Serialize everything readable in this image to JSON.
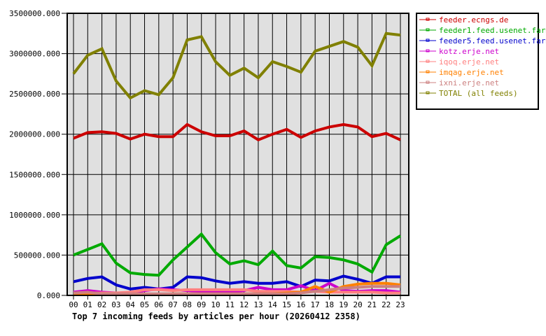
{
  "chart_data": {
    "type": "line",
    "title": "Top 7 incoming feeds by articles per hour (20260412 2358)",
    "xlabel": "",
    "ylabel": "",
    "ylim": [
      0,
      3500000
    ],
    "grid": true,
    "legend_position": "right-top",
    "y_ticks": [
      "0.000",
      "500000.000",
      "1000000.000",
      "1500000.000",
      "2000000.000",
      "2500000.000",
      "3000000.000",
      "3500000.000"
    ],
    "x": [
      "00",
      "01",
      "02",
      "03",
      "04",
      "05",
      "06",
      "07",
      "08",
      "09",
      "10",
      "11",
      "12",
      "13",
      "14",
      "15",
      "16",
      "17",
      "18",
      "19",
      "20",
      "21",
      "22",
      "23"
    ],
    "series": [
      {
        "name": "feeder.ecngs.de",
        "color": "#cc0000",
        "values": [
          1950000,
          2020000,
          2030000,
          2010000,
          1940000,
          2000000,
          1970000,
          1970000,
          2120000,
          2030000,
          1980000,
          1980000,
          2040000,
          1930000,
          2000000,
          2060000,
          1960000,
          2040000,
          2090000,
          2120000,
          2090000,
          1970000,
          2010000,
          1930000
        ]
      },
      {
        "name": "feeder1.feed.usenet.farm",
        "color": "#00aa00",
        "values": [
          500000,
          570000,
          640000,
          400000,
          280000,
          260000,
          250000,
          440000,
          600000,
          760000,
          530000,
          390000,
          430000,
          380000,
          550000,
          370000,
          340000,
          480000,
          470000,
          440000,
          390000,
          290000,
          630000,
          740000
        ]
      },
      {
        "name": "feeder5.feed.usenet.farm",
        "color": "#0000cc",
        "values": [
          170000,
          210000,
          230000,
          130000,
          80000,
          100000,
          80000,
          100000,
          230000,
          220000,
          180000,
          150000,
          170000,
          150000,
          150000,
          170000,
          110000,
          190000,
          180000,
          240000,
          200000,
          150000,
          230000,
          230000
        ]
      },
      {
        "name": "kotz.erje.net",
        "color": "#cc00cc",
        "values": [
          40000,
          60000,
          40000,
          30000,
          20000,
          60000,
          80000,
          70000,
          60000,
          50000,
          50000,
          40000,
          60000,
          100000,
          70000,
          70000,
          120000,
          60000,
          150000,
          60000,
          50000,
          60000,
          60000,
          40000
        ]
      },
      {
        "name": "iqoq.erje.net",
        "color": "#ff8080",
        "values": [
          30000,
          30000,
          30000,
          30000,
          40000,
          70000,
          70000,
          60000,
          70000,
          70000,
          70000,
          70000,
          70000,
          50000,
          50000,
          50000,
          40000,
          50000,
          40000,
          40000,
          40000,
          40000,
          30000,
          30000
        ]
      },
      {
        "name": "imqag.erje.net",
        "color": "#ff8000",
        "values": [
          20000,
          20000,
          20000,
          10000,
          10000,
          10000,
          10000,
          20000,
          20000,
          20000,
          20000,
          20000,
          20000,
          20000,
          20000,
          30000,
          40000,
          110000,
          40000,
          110000,
          140000,
          150000,
          150000,
          130000
        ]
      },
      {
        "name": "ixni.erje.net",
        "color": "#cc8080",
        "values": [
          30000,
          40000,
          20000,
          20000,
          20000,
          20000,
          20000,
          20000,
          20000,
          20000,
          20000,
          20000,
          20000,
          20000,
          20000,
          20000,
          30000,
          50000,
          70000,
          90000,
          100000,
          110000,
          110000,
          110000
        ]
      },
      {
        "name": "TOTAL (all feeds)",
        "color": "#808000",
        "values": [
          2750000,
          2980000,
          3060000,
          2660000,
          2450000,
          2540000,
          2490000,
          2700000,
          3170000,
          3210000,
          2900000,
          2730000,
          2820000,
          2700000,
          2900000,
          2840000,
          2770000,
          3030000,
          3090000,
          3150000,
          3080000,
          2850000,
          3250000,
          3230000
        ]
      }
    ]
  },
  "colors": {
    "plot_background": "#e0e0e0",
    "grid": "#000000"
  }
}
